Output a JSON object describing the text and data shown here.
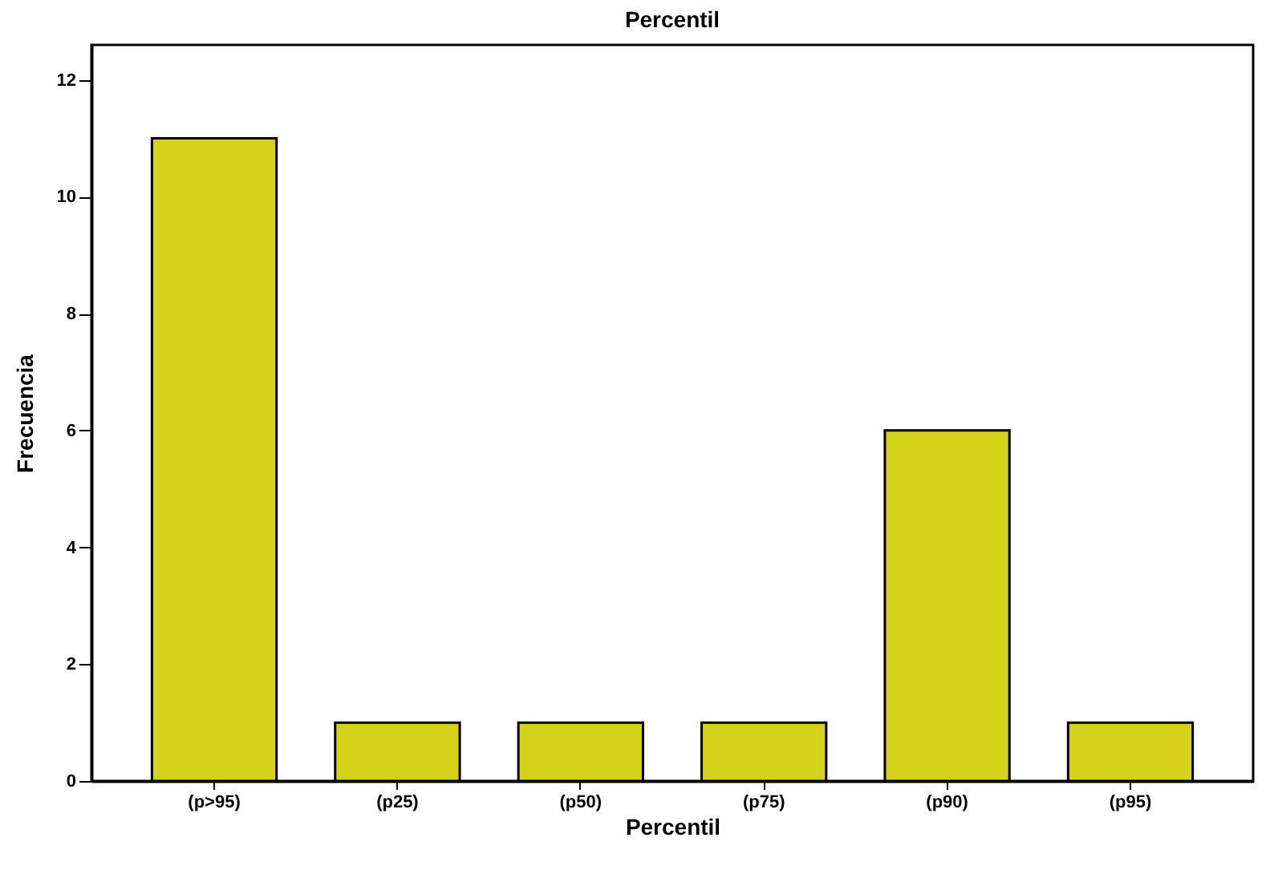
{
  "chart_data": {
    "type": "bar",
    "title": "Percentil",
    "xlabel": "Percentil",
    "ylabel": "Frecuencia",
    "categories": [
      "(p>95)",
      "(p25)",
      "(p50)",
      "(p75)",
      "(p90)",
      "(p95)"
    ],
    "values": [
      11,
      1,
      1,
      1,
      6,
      1
    ],
    "color": "#d4d21a",
    "ylim": [
      0,
      12.6
    ],
    "yticks": [
      0,
      2,
      4,
      6,
      8,
      10,
      12
    ],
    "grid": false
  }
}
